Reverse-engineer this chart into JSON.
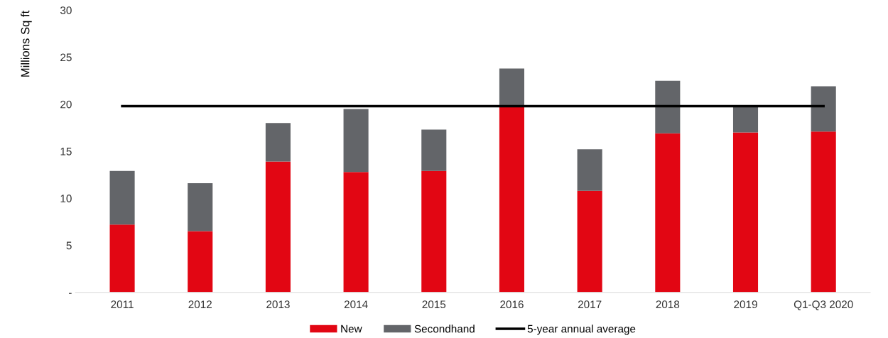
{
  "chart_data": {
    "type": "bar",
    "stacked": true,
    "ylabel": "Millions Sq ft",
    "categories": [
      "2011",
      "2012",
      "2013",
      "2014",
      "2015",
      "2016",
      "2017",
      "2018",
      "2019",
      "Q1-Q3 2020"
    ],
    "series": [
      {
        "name": "New",
        "color": "#e20613",
        "values": [
          7.2,
          6.5,
          13.9,
          12.8,
          12.9,
          19.7,
          10.8,
          16.9,
          17.0,
          17.1
        ]
      },
      {
        "name": "Secondhand",
        "color": "#636569",
        "values": [
          5.7,
          5.1,
          4.1,
          6.7,
          4.4,
          4.1,
          4.4,
          5.6,
          2.7,
          4.8
        ]
      },
      {
        "name": "5-year annual average",
        "type": "line",
        "color": "#000000",
        "values": [
          19.8,
          19.8,
          19.8,
          19.8,
          19.8,
          19.8,
          19.8,
          19.8,
          19.8,
          19.8
        ]
      }
    ],
    "ylim": [
      0,
      30
    ],
    "yticks": [
      {
        "value": 0,
        "label": "-"
      },
      5,
      10,
      15,
      20,
      25,
      30
    ],
    "grid": false,
    "legend": "bottom",
    "marker": "none",
    "line_style": "solid"
  }
}
